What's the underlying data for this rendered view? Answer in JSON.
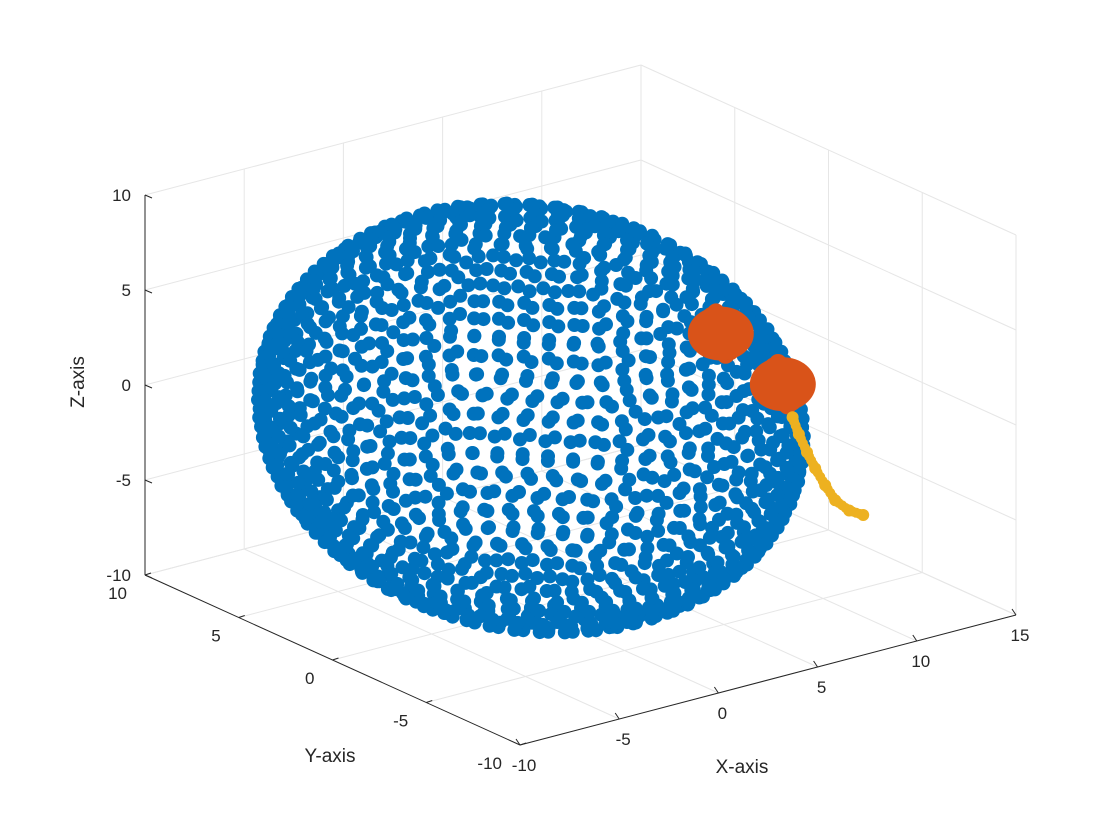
{
  "chart_data": {
    "type": "scatter",
    "projection": "3d",
    "title": "",
    "xlabel": "X-axis",
    "ylabel": "Y-axis",
    "zlabel": "Z-axis",
    "xlim": [
      -10,
      15
    ],
    "ylim": [
      -10,
      10
    ],
    "zlim": [
      -10,
      10
    ],
    "xticks": [
      -10,
      -5,
      0,
      5,
      10,
      15
    ],
    "yticks": [
      -10,
      -5,
      0,
      5,
      10
    ],
    "zticks": [
      -10,
      -5,
      0,
      5,
      10
    ],
    "xtick_labels": [
      "-10",
      "-5",
      "0",
      "5",
      "10",
      "15"
    ],
    "ytick_labels": [
      "-10",
      "-5",
      "0",
      "5",
      "10"
    ],
    "ztick_labels": [
      "-10",
      "-5",
      "0",
      "5",
      "10"
    ],
    "grid": true,
    "legend": "none",
    "colors": {
      "sphere": "#0072BD",
      "spheres_small": "#D95319",
      "trail": "#EDB120",
      "grid": "#e6e6e6",
      "axis": "#262626"
    },
    "series": [
      {
        "kind": "sphere-surface-points",
        "color": "#0072BD",
        "center": [
          0,
          0,
          0
        ],
        "radius": 10
      },
      {
        "kind": "point-cluster",
        "color": "#D95319",
        "centers": [
          [
            0.5,
            -9.6,
            8.6
          ],
          [
            4.0,
            -9.2,
            4.8
          ]
        ],
        "radius": 1.3
      },
      {
        "kind": "trail",
        "color": "#EDB120",
        "points": [
          [
            4.4,
            -9.3,
            3.0
          ],
          [
            5.0,
            -9.0,
            1.8
          ],
          [
            5.6,
            -8.8,
            0.6
          ],
          [
            6.2,
            -8.6,
            -0.5
          ],
          [
            6.8,
            -8.5,
            -1.6
          ],
          [
            7.4,
            -8.4,
            -2.6
          ],
          [
            8.2,
            -8.3,
            -3.4
          ],
          [
            9.0,
            -8.2,
            -3.9
          ]
        ]
      }
    ]
  }
}
